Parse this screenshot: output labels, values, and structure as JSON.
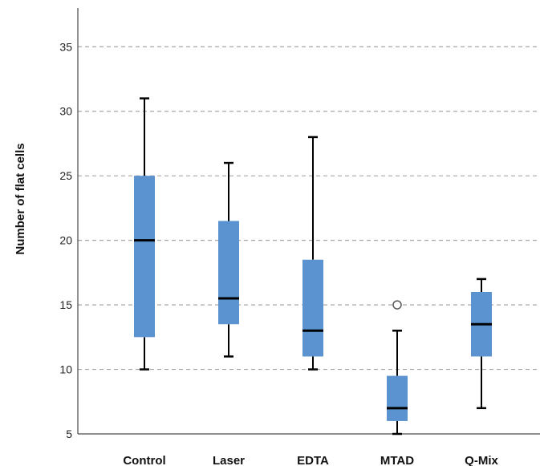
{
  "chart_data": {
    "type": "boxplot",
    "title": "",
    "xlabel": "",
    "ylabel": "Number of flat cells",
    "ylim": [
      5,
      38
    ],
    "yticks": [
      5,
      10,
      15,
      20,
      25,
      30,
      35
    ],
    "grid": "horizontal dashed",
    "colors": {
      "box": "#5b93d0",
      "median": "#000000",
      "whisker": "#000000",
      "grid": "#a6a6a6"
    },
    "categories": [
      "Control",
      "Laser",
      "EDTA",
      "MTAD",
      "Q-Mix"
    ],
    "boxes": [
      {
        "category": "Control",
        "min": 10,
        "q1": 12.5,
        "median": 20,
        "q3": 25,
        "max": 31,
        "outliers": []
      },
      {
        "category": "Laser",
        "min": 11,
        "q1": 13.5,
        "median": 15.5,
        "q3": 21.5,
        "max": 26,
        "outliers": []
      },
      {
        "category": "EDTA",
        "min": 10,
        "q1": 11,
        "median": 13,
        "q3": 18.5,
        "max": 28,
        "outliers": []
      },
      {
        "category": "MTAD",
        "min": 5,
        "q1": 6,
        "median": 7,
        "q3": 9.5,
        "max": 13,
        "outliers": [
          15
        ]
      },
      {
        "category": "Q-Mix",
        "min": 7,
        "q1": 11,
        "median": 13.5,
        "q3": 16,
        "max": 17,
        "outliers": []
      }
    ]
  }
}
